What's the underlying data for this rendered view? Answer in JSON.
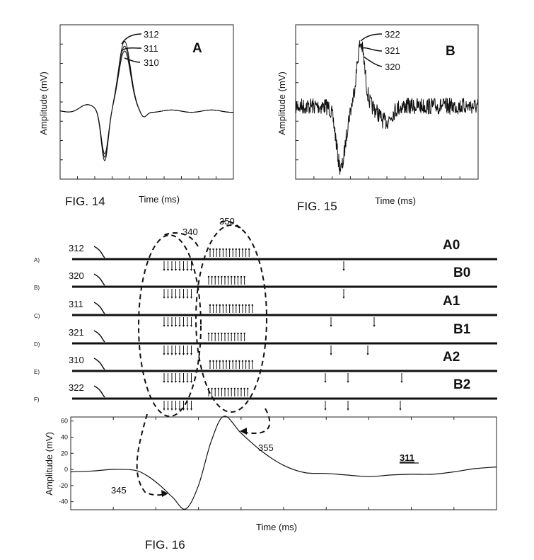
{
  "fig14": {
    "caption": "FIG. 14",
    "panel": "A",
    "ylabel": "Amplitude (mV)",
    "xlabel": "Time (ms)",
    "callouts": [
      "312",
      "311",
      "310"
    ]
  },
  "fig15": {
    "caption": "FIG. 15",
    "panel": "B",
    "ylabel": "Amplitude (mV)",
    "xlabel": "Time (ms)",
    "callouts": [
      "322",
      "321",
      "320"
    ]
  },
  "fig16": {
    "caption": "FIG. 16",
    "rows": [
      {
        "letter": "A)",
        "ref": "312",
        "tag": "A0"
      },
      {
        "letter": "B)",
        "ref": "320",
        "tag": "B0"
      },
      {
        "letter": "C)",
        "ref": "311",
        "tag": "A1"
      },
      {
        "letter": "D)",
        "ref": "321",
        "tag": "B1"
      },
      {
        "letter": "E)",
        "ref": "310",
        "tag": "A2"
      },
      {
        "letter": "F)",
        "ref": "322",
        "tag": "B2"
      }
    ],
    "group_labels": [
      "340",
      "350"
    ],
    "annotations": [
      "345",
      "355"
    ],
    "trace_label": "311",
    "ylabel": "Amplitude (mV)",
    "xlabel": "Time (ms)",
    "yticks": [
      "60",
      "40",
      "20",
      "0",
      "-20",
      "-40"
    ]
  },
  "chart_data": [
    {
      "type": "line",
      "ylabel": "Amplitude (mV)",
      "xlabel": "Time (ms)",
      "series": [
        {
          "name": "311",
          "x": [
            0,
            0.05,
            0.1,
            0.15,
            0.18,
            0.21,
            0.24,
            0.27,
            0.3,
            0.33,
            0.36,
            0.4,
            0.45,
            0.5,
            0.55,
            0.6,
            0.65,
            0.7,
            0.75,
            0.8,
            0.85,
            0.9,
            0.95,
            1.0
          ],
          "y": [
            -3,
            -2,
            0,
            -1,
            -8,
            -20,
            -35,
            -49,
            -20,
            35,
            66,
            45,
            22,
            5,
            -4,
            -5,
            -7,
            -9,
            -7,
            -6,
            -6,
            -3,
            1,
            3
          ]
        }
      ],
      "ylim": [
        -50,
        65
      ]
    }
  ]
}
